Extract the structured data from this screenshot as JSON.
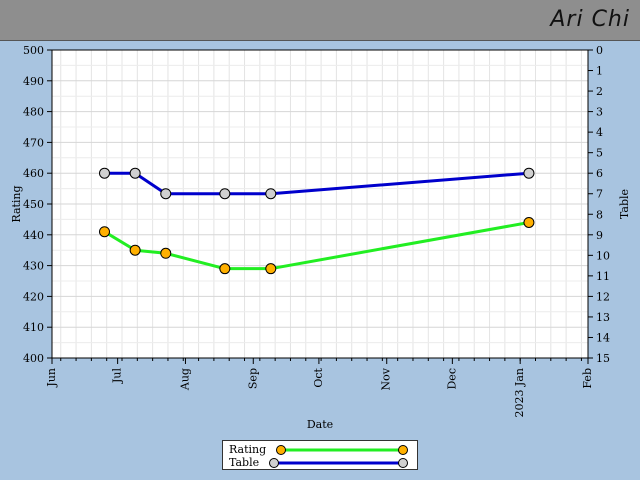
{
  "header": {
    "title": "Ari Chi"
  },
  "chart_data": {
    "type": "line",
    "xlabel": "Date",
    "ylabel_left": "Rating",
    "ylabel_right": "Table",
    "x_ticks": [
      "Jun",
      "Jul",
      "Aug",
      "Sep",
      "Oct",
      "Nov",
      "Dec",
      "2023 Jan",
      "Feb"
    ],
    "x_range": [
      "2022-06-01",
      "2023-02-01"
    ],
    "y_left_ticks": [
      "400",
      "410",
      "420",
      "430",
      "440",
      "450",
      "460",
      "470",
      "480",
      "490",
      "500"
    ],
    "y_left_range": [
      400,
      500
    ],
    "y_right_ticks": [
      "0",
      "1",
      "2",
      "3",
      "4",
      "5",
      "6",
      "7",
      "8",
      "9",
      "10",
      "11",
      "12",
      "13",
      "14",
      "15"
    ],
    "y_right_range": [
      0,
      15
    ],
    "y_right_inverted": true,
    "grid": true,
    "legend_position": "bottom",
    "series": [
      {
        "name": "Rating",
        "axis": "left",
        "color": "#22ee22",
        "marker_color": "#ffb000",
        "x": [
          "2022-06-25",
          "2022-07-09",
          "2022-07-23",
          "2022-08-19",
          "2022-09-09",
          "2023-01-05"
        ],
        "y": [
          441,
          435,
          434,
          429,
          429,
          444
        ]
      },
      {
        "name": "Table",
        "axis": "right",
        "color": "#0000cc",
        "marker_color": "#d0d0d0",
        "x": [
          "2022-06-25",
          "2022-07-09",
          "2022-07-23",
          "2022-08-19",
          "2022-09-09",
          "2023-01-05"
        ],
        "y": [
          6,
          6,
          7,
          7,
          7,
          6
        ]
      }
    ]
  }
}
